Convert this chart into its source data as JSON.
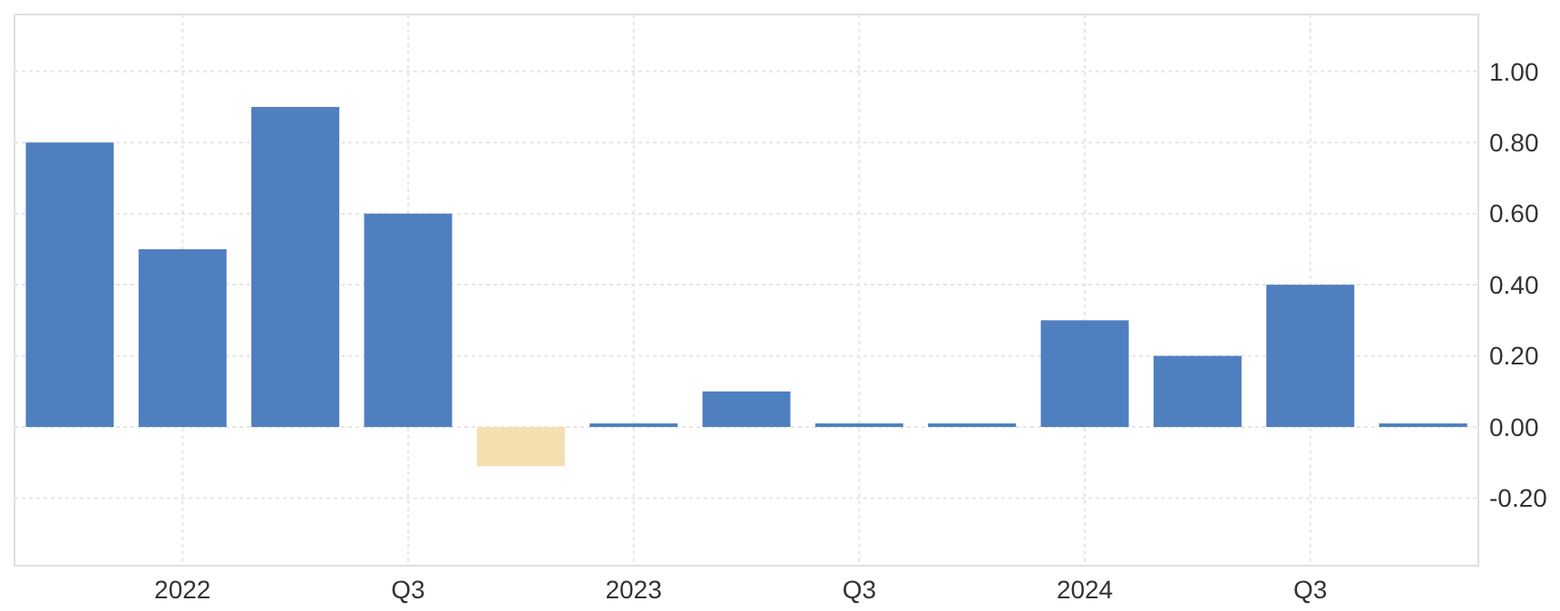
{
  "chart_data": {
    "type": "bar",
    "categories": [
      null,
      "2022",
      null,
      "Q3",
      null,
      "2023",
      null,
      "Q3",
      null,
      "2024",
      null,
      "Q3",
      null
    ],
    "values": [
      0.8,
      0.5,
      0.9,
      0.6,
      -0.11,
      0.01,
      0.1,
      0.01,
      0.01,
      0.3,
      0.2,
      0.4,
      0.01
    ],
    "colors": [
      "#4f7fbf",
      "#4f7fbf",
      "#4f7fbf",
      "#4f7fbf",
      "#f5deb0",
      "#4f7fbf",
      "#4f7fbf",
      "#4f7fbf",
      "#4f7fbf",
      "#4f7fbf",
      "#4f7fbf",
      "#4f7fbf",
      "#4f7fbf"
    ],
    "ylim": [
      -0.39,
      1.16
    ],
    "yticks": [
      {
        "value": -0.2,
        "label": "-0.20"
      },
      {
        "value": 0,
        "label": "0.00"
      },
      {
        "value": 0.2,
        "label": "0.20"
      },
      {
        "value": 0.4,
        "label": "0.40"
      },
      {
        "value": 0.6,
        "label": "0.60"
      },
      {
        "value": 0.8,
        "label": "0.80"
      },
      {
        "value": 1,
        "label": "1.00"
      }
    ],
    "grid": true
  }
}
